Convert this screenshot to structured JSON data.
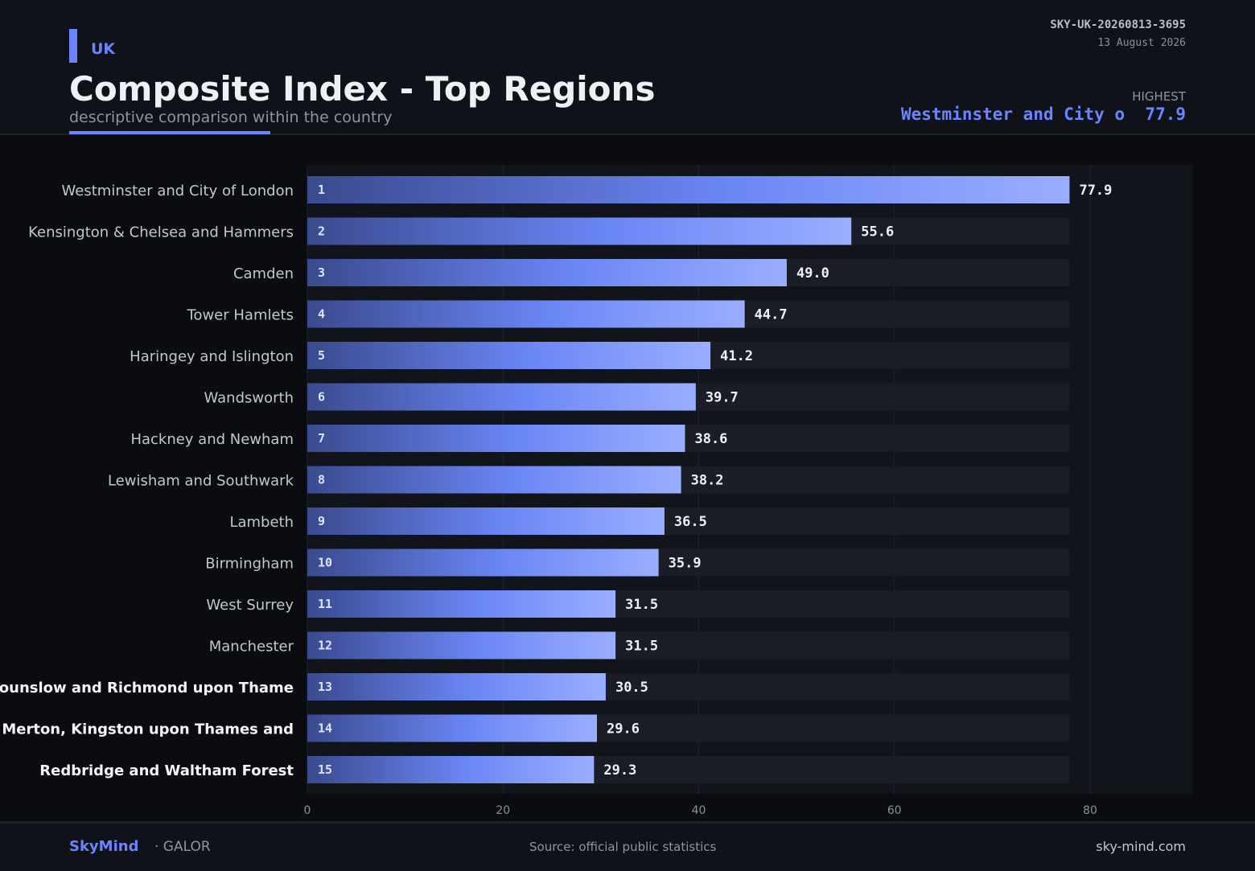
{
  "header": {
    "country": "UK",
    "title": "Composite Index - Top Regions",
    "subtitle": "descriptive comparison within the country",
    "doc_id": "SKY-UK-20260813-3695",
    "date": "13 August 2026",
    "highest_label": "HIGHEST",
    "highest_region": "Westminster and City o",
    "highest_value": "77.9"
  },
  "footer": {
    "brand": "SkyMind",
    "brand_sub": "· GALOR",
    "source": "Source: official public statistics",
    "site": "sky-mind.com"
  },
  "colors": {
    "accent": "#6c84ff",
    "bar_start": "#3a4a8e",
    "bar_mid": "#6a86f5",
    "bar_end": "#9aaeff",
    "track": "#1a1d25",
    "plot_bg": "#11141b"
  },
  "chart_data": {
    "type": "bar",
    "orientation": "horizontal",
    "categories": [
      "Westminster and City of London",
      "Kensington & Chelsea and Hammers",
      "Camden",
      "Tower Hamlets",
      "Haringey and Islington",
      "Wandsworth",
      "Hackney and Newham",
      "Lewisham and Southwark",
      "Lambeth",
      "Birmingham",
      "West Surrey",
      "Manchester",
      "Hounslow and Richmond upon Thame",
      "Merton, Kingston upon Thames and",
      "Redbridge and Waltham Forest"
    ],
    "bold_categories": [
      12,
      13,
      14
    ],
    "ranks": [
      "1",
      "2",
      "3",
      "4",
      "5",
      "6",
      "7",
      "8",
      "9",
      "10",
      "11",
      "12",
      "13",
      "14",
      "15"
    ],
    "values": [
      77.9,
      55.6,
      49.0,
      44.7,
      41.2,
      39.7,
      38.6,
      38.2,
      36.5,
      35.9,
      31.5,
      31.5,
      30.5,
      29.6,
      29.3
    ],
    "value_labels": [
      "77.9",
      "55.6",
      "49.0",
      "44.7",
      "41.2",
      "39.7",
      "38.6",
      "38.2",
      "36.5",
      "35.9",
      "31.5",
      "31.5",
      "30.5",
      "29.6",
      "29.3"
    ],
    "xlim": [
      0,
      90
    ],
    "xticks": [
      0,
      20,
      40,
      60,
      80
    ],
    "grid": true,
    "legend": "none"
  }
}
